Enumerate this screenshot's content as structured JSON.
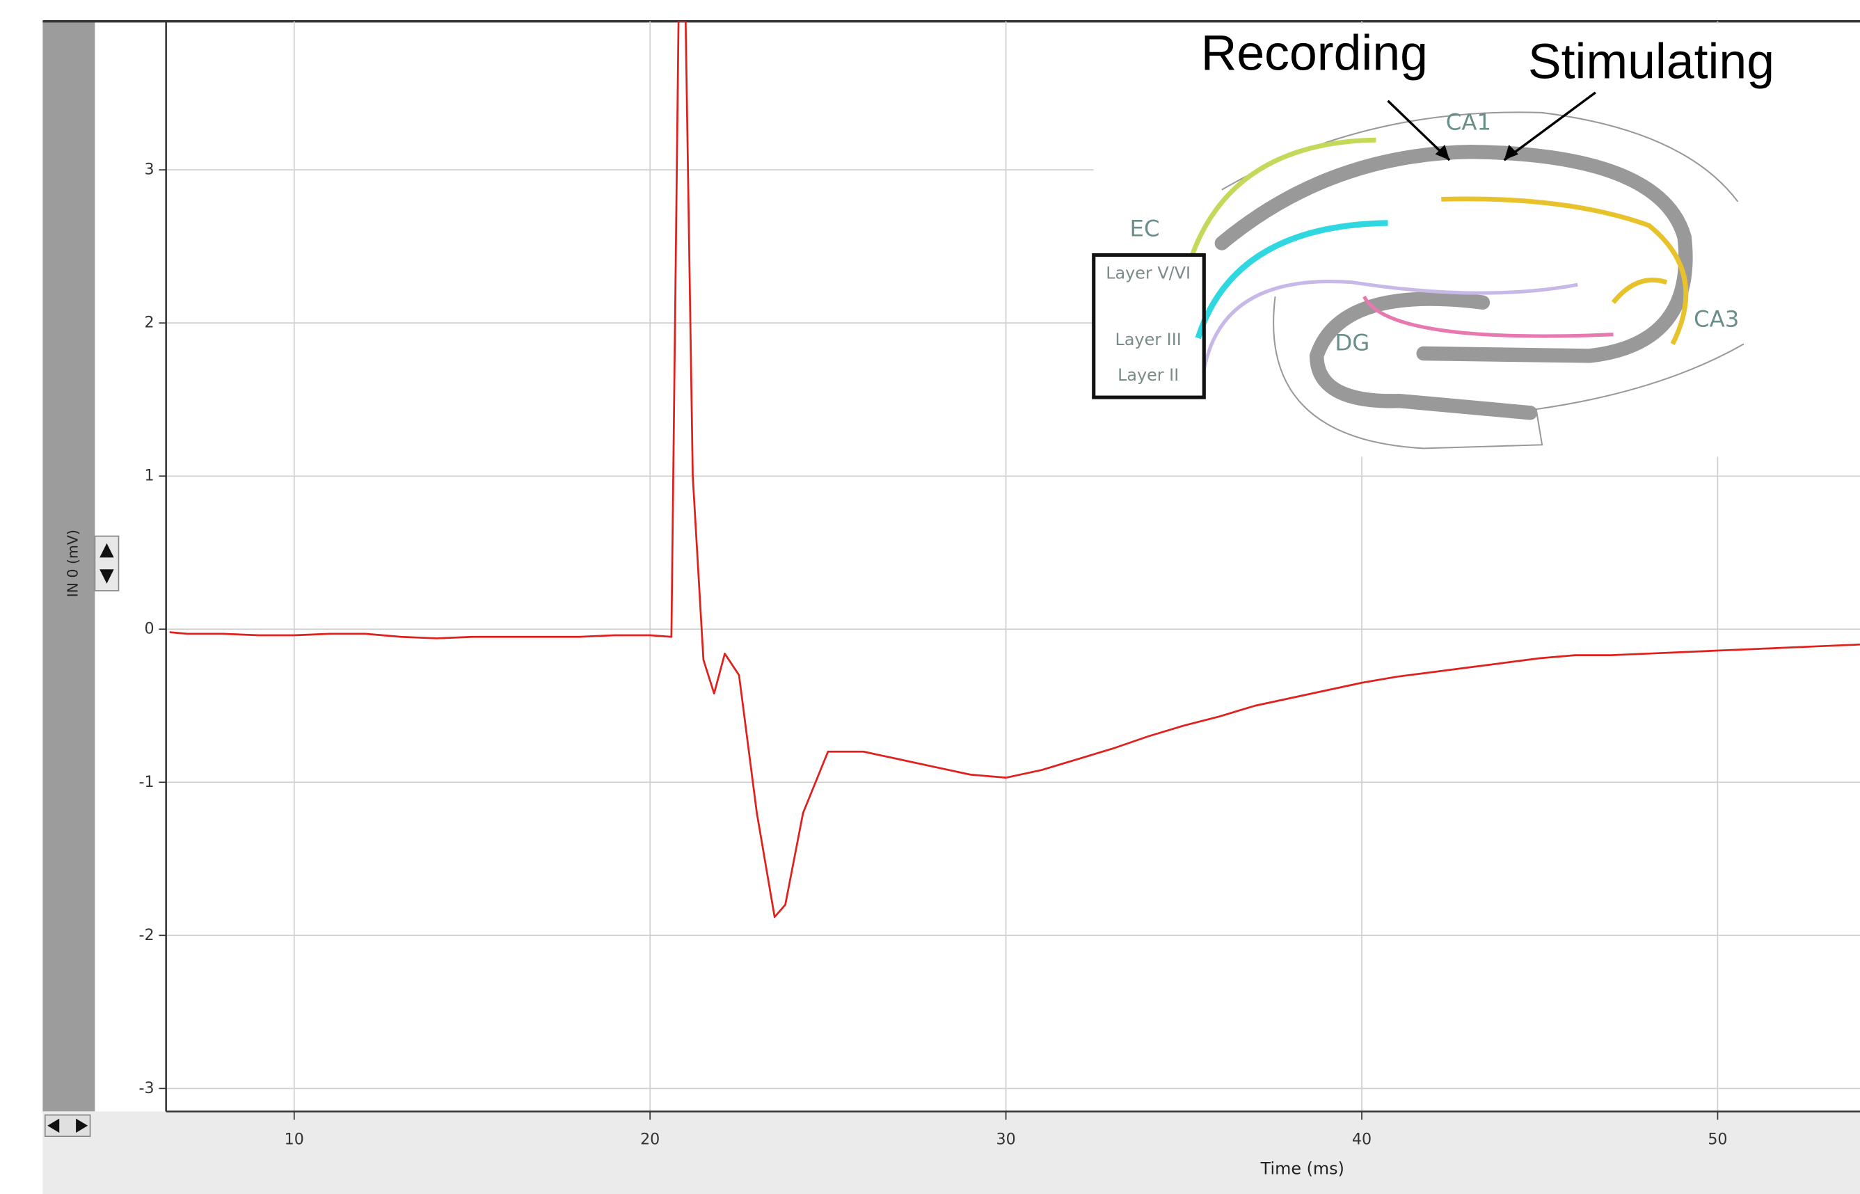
{
  "chart_data": {
    "type": "line",
    "x_label": "Time (ms)",
    "y_label": "IN 0 (mV)",
    "x": [
      6.5,
      7,
      8,
      9,
      10,
      11,
      12,
      13,
      14,
      15,
      16,
      17,
      18,
      19,
      20,
      20.6,
      20.8,
      21.0,
      21.2,
      21.5,
      21.8,
      22.1,
      22.5,
      23.0,
      23.5,
      23.8,
      24.3,
      25,
      26,
      27,
      28,
      29,
      30,
      31,
      32,
      33,
      34,
      35,
      36,
      37,
      38,
      39,
      40,
      41,
      42,
      43,
      44,
      45,
      46,
      47,
      48,
      49,
      50,
      51,
      52,
      53,
      54
    ],
    "values": [
      -0.02,
      -0.03,
      -0.03,
      -0.04,
      -0.04,
      -0.03,
      -0.03,
      -0.05,
      -0.06,
      -0.05,
      -0.05,
      -0.05,
      -0.05,
      -0.04,
      -0.04,
      -0.05,
      3.97,
      3.97,
      1.0,
      -0.2,
      -0.42,
      -0.16,
      -0.3,
      -1.2,
      -1.88,
      -1.8,
      -1.2,
      -0.8,
      -0.8,
      -0.85,
      -0.9,
      -0.95,
      -0.97,
      -0.92,
      -0.85,
      -0.78,
      -0.7,
      -0.63,
      -0.57,
      -0.5,
      -0.45,
      -0.4,
      -0.35,
      -0.31,
      -0.28,
      -0.25,
      -0.22,
      -0.19,
      -0.17,
      -0.17,
      -0.16,
      -0.15,
      -0.14,
      -0.13,
      -0.12,
      -0.11,
      -0.1
    ],
    "color": "#e0201c",
    "xlim": [
      6.4,
      54
    ],
    "ylim": [
      -3.15,
      3.97
    ],
    "xticks": [
      10,
      20,
      30,
      40,
      50
    ],
    "yticks": [
      -3,
      -2,
      -1,
      0,
      1,
      2,
      3
    ],
    "grid": true
  },
  "diagram": {
    "recording": "Recording",
    "stimulating": "Stimulating",
    "ca1": "CA1",
    "ec": "EC",
    "layer_v_vi": "Layer V/VI",
    "layer_iii": "Layer III",
    "layer_ii": "Layer II",
    "dg": "DG",
    "ca3": "CA3"
  }
}
